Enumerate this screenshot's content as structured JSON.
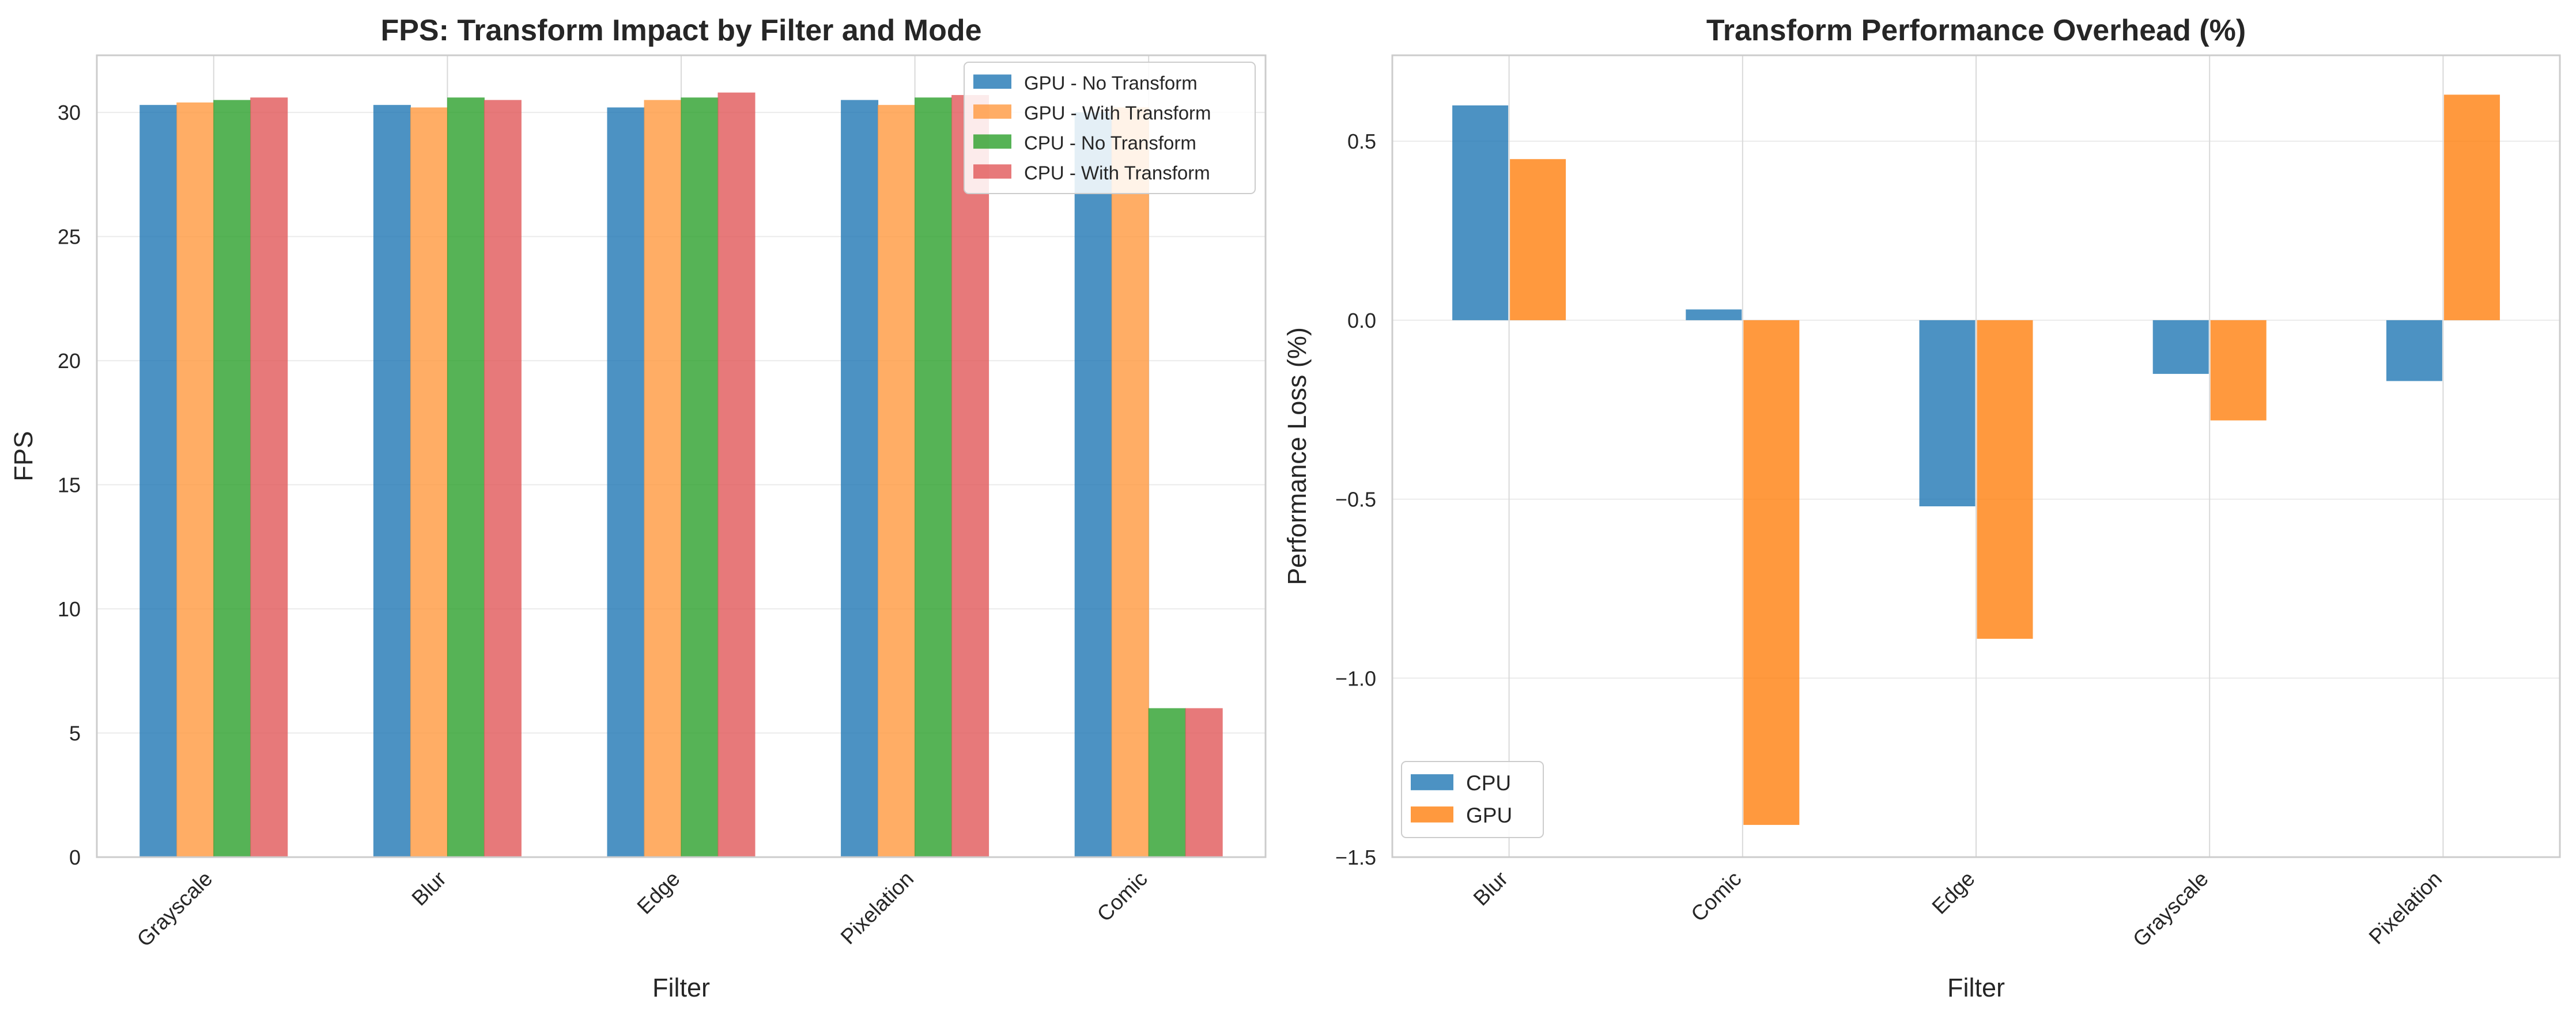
{
  "chart_data": [
    {
      "type": "bar",
      "title": "FPS: Transform Impact by Filter and Mode",
      "xlabel": "Filter",
      "ylabel": "FPS",
      "categories": [
        "Grayscale",
        "Blur",
        "Edge",
        "Pixelation",
        "Comic"
      ],
      "ylim": [
        0,
        32.3
      ],
      "yticks": [
        0,
        5,
        10,
        15,
        20,
        25,
        30
      ],
      "ytick_labels": [
        "0",
        "5",
        "10",
        "15",
        "20",
        "25",
        "30"
      ],
      "grid": true,
      "legend_position": "top-right",
      "series": [
        {
          "name": "GPU - No Transform",
          "color": "#1f77b4",
          "values": [
            30.3,
            30.3,
            30.2,
            30.5,
            30.0
          ]
        },
        {
          "name": "GPU - With Transform",
          "color": "#ff983e",
          "values": [
            30.4,
            30.2,
            30.5,
            30.3,
            30.2
          ]
        },
        {
          "name": "CPU - No Transform",
          "color": "#2ca02c",
          "values": [
            30.5,
            30.6,
            30.6,
            30.6,
            6.0
          ]
        },
        {
          "name": "CPU - With Transform",
          "color": "#e15759",
          "values": [
            30.6,
            30.5,
            30.8,
            30.7,
            6.0
          ]
        }
      ]
    },
    {
      "type": "bar",
      "title": "Transform Performance Overhead (%)",
      "xlabel": "Filter",
      "ylabel": "Performance Loss (%)",
      "categories": [
        "Blur",
        "Comic",
        "Edge",
        "Grayscale",
        "Pixelation"
      ],
      "ylim": [
        -1.5,
        0.74
      ],
      "yticks": [
        -1.5,
        -1.0,
        -0.5,
        0.0,
        0.5
      ],
      "ytick_labels": [
        "−1.5",
        "−1.0",
        "−0.5",
        "0.0",
        "0.5"
      ],
      "grid": true,
      "legend_position": "bottom-left",
      "series": [
        {
          "name": "CPU",
          "color": "#1f77b4",
          "values": [
            0.6,
            0.03,
            -0.52,
            -0.15,
            -0.17
          ]
        },
        {
          "name": "GPU",
          "color": "#ff7f0e",
          "values": [
            0.45,
            -1.41,
            -0.89,
            -0.28,
            0.63
          ]
        }
      ]
    }
  ]
}
